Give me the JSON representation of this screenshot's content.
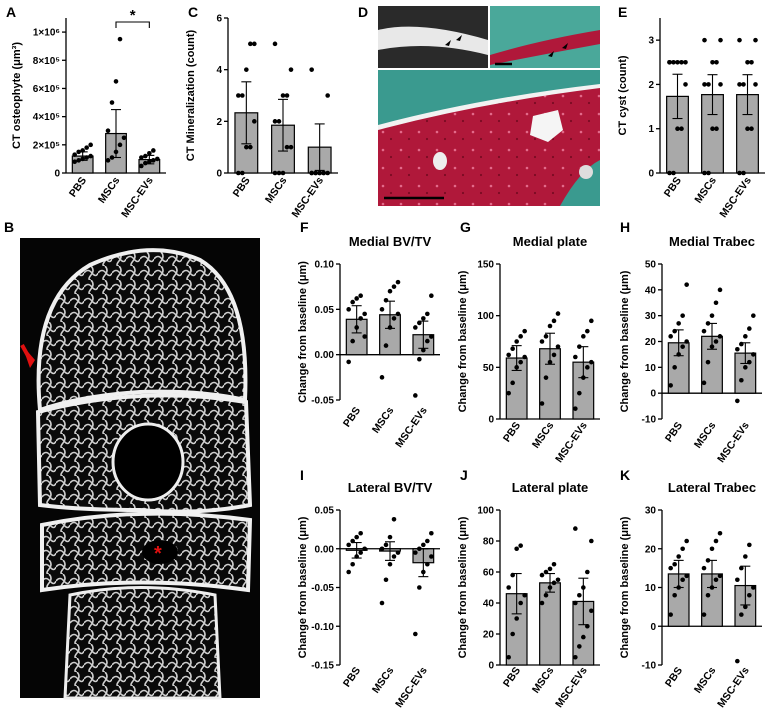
{
  "panel_letters": {
    "A": "A",
    "B": "B",
    "C": "C",
    "D": "D",
    "E": "E",
    "F": "F",
    "G": "G",
    "H": "H",
    "I": "I",
    "J": "J",
    "K": "K"
  },
  "micro_ct_marker": "*",
  "colors": {
    "bar": "#a9a9a9",
    "arrow": "#e01010",
    "tissue_red": "#b0183a",
    "tissue_green": "#3a9a8f"
  },
  "chart_data": [
    {
      "id": "A",
      "type": "bar",
      "title": "",
      "ylabel": "CT osteophyte (μm³)",
      "categories": [
        "PBS",
        "MSCs",
        "MSC-EVs"
      ],
      "ylim": [
        0,
        1100000
      ],
      "yticks": [
        "0",
        "2×10⁵",
        "4×10⁵",
        "6×10⁵",
        "8×10⁵",
        "1×10⁶"
      ],
      "ytick_values": [
        0,
        200000,
        400000,
        600000,
        800000,
        1000000
      ],
      "values": [
        120000,
        280000,
        95000
      ],
      "errors": [
        30000,
        170000,
        30000
      ],
      "points": [
        [
          80000,
          90000,
          100000,
          110000,
          120000,
          130000,
          150000,
          160000,
          180000,
          200000
        ],
        [
          90000,
          110000,
          150000,
          200000,
          250000,
          300000,
          500000,
          650000,
          950000
        ],
        [
          50000,
          70000,
          80000,
          90000,
          100000,
          110000,
          120000,
          140000,
          160000
        ]
      ],
      "significance": {
        "label": "*",
        "between": [
          1,
          2
        ]
      }
    },
    {
      "id": "C",
      "type": "bar",
      "title": "",
      "ylabel": "CT Mineralization (count)",
      "categories": [
        "PBS",
        "MSCs",
        "MSC-EVs"
      ],
      "ylim": [
        0,
        6
      ],
      "yticks": [
        "0",
        "2",
        "4",
        "6"
      ],
      "ytick_values": [
        0,
        2,
        4,
        6
      ],
      "values": [
        2.33,
        1.85,
        1.0
      ],
      "errors": [
        1.2,
        1.0,
        0.9
      ],
      "points": [
        [
          0,
          0,
          1,
          1,
          2,
          3,
          3,
          4,
          5,
          5
        ],
        [
          0,
          0,
          0,
          1,
          1,
          2,
          2,
          3,
          3,
          4,
          5
        ],
        [
          0,
          0,
          0,
          0,
          0,
          0,
          0,
          0,
          0,
          3,
          4
        ]
      ]
    },
    {
      "id": "E",
      "type": "bar",
      "title": "",
      "ylabel": "CT cyst (count)",
      "categories": [
        "PBS",
        "MSCs",
        "MSC-EVs"
      ],
      "ylim": [
        0,
        3.5
      ],
      "yticks": [
        "0",
        "1",
        "2",
        "3"
      ],
      "ytick_values": [
        0,
        1,
        2,
        3
      ],
      "values": [
        1.73,
        1.77,
        1.77
      ],
      "errors": [
        0.5,
        0.45,
        0.45
      ],
      "points": [
        [
          0,
          0,
          1,
          1,
          2,
          2.5,
          2.5,
          2.5,
          2.5,
          2.5,
          2.5
        ],
        [
          0,
          0,
          1,
          1,
          2,
          2,
          2,
          2.5,
          2.5,
          3,
          3
        ],
        [
          0,
          0,
          1,
          1,
          2,
          2,
          2,
          2.5,
          2.5,
          3,
          3
        ]
      ]
    },
    {
      "id": "F",
      "type": "bar",
      "title": "Medial BV/TV",
      "ylabel": "Change from baseline (μm)",
      "categories": [
        "PBS",
        "MSCs",
        "MSC-EVs"
      ],
      "ylim": [
        -0.05,
        0.1
      ],
      "yticks": [
        "-0.05",
        "0.00",
        "0.05",
        "0.10"
      ],
      "ytick_values": [
        -0.05,
        0,
        0.05,
        0.1
      ],
      "values": [
        0.039,
        0.044,
        0.022
      ],
      "errors": [
        0.015,
        0.015,
        0.015
      ],
      "points": [
        [
          -0.008,
          0.015,
          0.03,
          0.04,
          0.045,
          0.05,
          0.058,
          0.062,
          0.065,
          0.02
        ],
        [
          -0.025,
          0.01,
          0.03,
          0.04,
          0.045,
          0.05,
          0.06,
          0.07,
          0.075,
          0.08
        ],
        [
          -0.045,
          -0.005,
          0.005,
          0.015,
          0.02,
          0.03,
          0.035,
          0.04,
          0.045,
          0.065
        ]
      ]
    },
    {
      "id": "G",
      "type": "bar",
      "title": "Medial plate",
      "ylabel": "Change from baseline (μm)",
      "categories": [
        "PBS",
        "MSCs",
        "MSC-EVs"
      ],
      "ylim": [
        0,
        150
      ],
      "yticks": [
        "0",
        "50",
        "100",
        "150"
      ],
      "ytick_values": [
        0,
        50,
        100,
        150
      ],
      "values": [
        59,
        68,
        55
      ],
      "errors": [
        12,
        15,
        15
      ],
      "points": [
        [
          25,
          35,
          50,
          55,
          60,
          62,
          68,
          75,
          80,
          85
        ],
        [
          15,
          40,
          55,
          62,
          70,
          75,
          80,
          90,
          95,
          102
        ],
        [
          10,
          25,
          40,
          50,
          55,
          60,
          70,
          80,
          85,
          95
        ]
      ]
    },
    {
      "id": "H",
      "type": "bar",
      "title": "Medial Trabec",
      "ylabel": "Change from baseline (μm)",
      "categories": [
        "PBS",
        "MSCs",
        "MSC-EVs"
      ],
      "ylim": [
        -10,
        50
      ],
      "yticks": [
        "-10",
        "0",
        "10",
        "20",
        "30",
        "40",
        "50"
      ],
      "ytick_values": [
        -10,
        0,
        10,
        20,
        30,
        40,
        50
      ],
      "values": [
        19.5,
        22,
        15.5
      ],
      "errors": [
        5,
        5,
        4
      ],
      "points": [
        [
          3,
          10,
          15,
          18,
          20,
          22,
          24,
          27,
          30,
          42
        ],
        [
          4,
          12,
          18,
          20,
          22,
          24,
          27,
          30,
          35,
          40
        ],
        [
          -3,
          5,
          10,
          12,
          15,
          17,
          19,
          22,
          25,
          30
        ]
      ]
    },
    {
      "id": "I",
      "type": "bar",
      "title": "Lateral BV/TV",
      "ylabel": "Change from baseline (μm)",
      "categories": [
        "PBS",
        "MSCs",
        "MSC-EVs"
      ],
      "ylim": [
        -0.15,
        0.05
      ],
      "yticks": [
        "-0.15",
        "-0.10",
        "-0.05",
        "0.00",
        "0.05"
      ],
      "ytick_values": [
        -0.15,
        -0.1,
        -0.05,
        0,
        0.05
      ],
      "values": [
        -0.002,
        -0.003,
        -0.018
      ],
      "errors": [
        0.01,
        0.012,
        0.018
      ],
      "points": [
        [
          -0.03,
          -0.02,
          -0.01,
          -0.005,
          0,
          0.005,
          0.01,
          0.015,
          0.02
        ],
        [
          -0.07,
          -0.04,
          -0.02,
          -0.01,
          -0.005,
          0,
          0.005,
          0.015,
          0.038
        ],
        [
          -0.11,
          -0.05,
          -0.03,
          -0.02,
          -0.01,
          -0.005,
          0,
          0.005,
          0.01,
          0.02
        ]
      ]
    },
    {
      "id": "J",
      "type": "bar",
      "title": "Lateral plate",
      "ylabel": "Change from baseline (μm)",
      "categories": [
        "PBS",
        "MSCs",
        "MSC-EVs"
      ],
      "ylim": [
        0,
        100
      ],
      "yticks": [
        "0",
        "20",
        "40",
        "60",
        "80",
        "100"
      ],
      "ytick_values": [
        0,
        20,
        40,
        60,
        80,
        100
      ],
      "values": [
        46,
        53,
        41
      ],
      "errors": [
        13,
        6,
        15
      ],
      "points": [
        [
          5,
          20,
          30,
          40,
          45,
          50,
          58,
          75,
          77
        ],
        [
          40,
          45,
          50,
          53,
          55,
          58,
          60,
          62,
          65
        ],
        [
          5,
          12,
          18,
          25,
          35,
          40,
          45,
          50,
          60,
          80,
          88
        ]
      ]
    },
    {
      "id": "K",
      "type": "bar",
      "title": "Lateral Trabec",
      "ylabel": "Change from baseline (μm)",
      "categories": [
        "PBS",
        "MSCs",
        "MSC-EVs"
      ],
      "ylim": [
        -10,
        30
      ],
      "yticks": [
        "-10",
        "0",
        "10",
        "20",
        "30"
      ],
      "ytick_values": [
        -10,
        0,
        10,
        20,
        30
      ],
      "values": [
        13.5,
        13.5,
        10.5
      ],
      "errors": [
        3.5,
        3.5,
        5
      ],
      "points": [
        [
          3,
          8,
          10,
          12,
          13,
          15,
          16,
          18,
          20,
          22
        ],
        [
          3,
          8,
          10,
          12,
          13,
          15,
          17,
          20,
          22,
          24
        ],
        [
          -9,
          3,
          5,
          8,
          10,
          12,
          15,
          18,
          21
        ]
      ]
    }
  ]
}
